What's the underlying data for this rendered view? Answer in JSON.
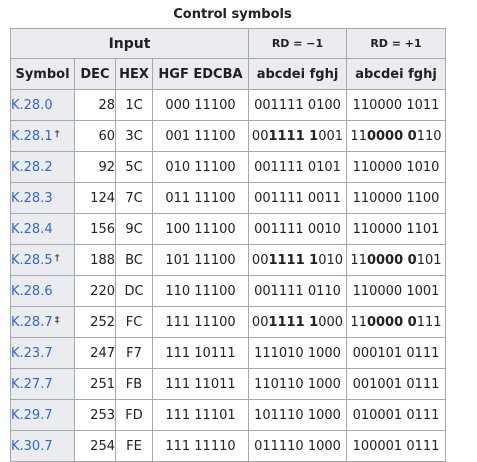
{
  "caption": "Control symbols",
  "header": {
    "input_label": "Input",
    "rd_neg_label": "RD = −1",
    "rd_pos_label": "RD = +1",
    "columns": [
      "Symbol",
      "DEC",
      "HEX",
      "HGF EDCBA",
      "abcdei fghj",
      "abcdei fghj"
    ]
  },
  "rows": [
    {
      "symbol": "K.28.0",
      "mark": "",
      "dec": "28",
      "hex": "1C",
      "hgf": "000 11100",
      "rd_neg": [
        {
          "t": "001111 0100",
          "b": false
        }
      ],
      "rd_pos": [
        {
          "t": "110000 1011",
          "b": false
        }
      ]
    },
    {
      "symbol": "K.28.1",
      "mark": "†",
      "dec": "60",
      "hex": "3C",
      "hgf": "001 11100",
      "rd_neg": [
        {
          "t": "00",
          "b": false
        },
        {
          "t": "1111 1",
          "b": true
        },
        {
          "t": "001",
          "b": false
        }
      ],
      "rd_pos": [
        {
          "t": "11",
          "b": false
        },
        {
          "t": "0000 0",
          "b": true
        },
        {
          "t": "110",
          "b": false
        }
      ]
    },
    {
      "symbol": "K.28.2",
      "mark": "",
      "dec": "92",
      "hex": "5C",
      "hgf": "010 11100",
      "rd_neg": [
        {
          "t": "001111 0101",
          "b": false
        }
      ],
      "rd_pos": [
        {
          "t": "110000 1010",
          "b": false
        }
      ]
    },
    {
      "symbol": "K.28.3",
      "mark": "",
      "dec": "124",
      "hex": "7C",
      "hgf": "011 11100",
      "rd_neg": [
        {
          "t": "001111 0011",
          "b": false
        }
      ],
      "rd_pos": [
        {
          "t": "110000 1100",
          "b": false
        }
      ]
    },
    {
      "symbol": "K.28.4",
      "mark": "",
      "dec": "156",
      "hex": "9C",
      "hgf": "100 11100",
      "rd_neg": [
        {
          "t": "001111 0010",
          "b": false
        }
      ],
      "rd_pos": [
        {
          "t": "110000 1101",
          "b": false
        }
      ]
    },
    {
      "symbol": "K.28.5",
      "mark": "†",
      "dec": "188",
      "hex": "BC",
      "hgf": "101 11100",
      "rd_neg": [
        {
          "t": "00",
          "b": false
        },
        {
          "t": "1111 1",
          "b": true
        },
        {
          "t": "010",
          "b": false
        }
      ],
      "rd_pos": [
        {
          "t": "11",
          "b": false
        },
        {
          "t": "0000 0",
          "b": true
        },
        {
          "t": "101",
          "b": false
        }
      ]
    },
    {
      "symbol": "K.28.6",
      "mark": "",
      "dec": "220",
      "hex": "DC",
      "hgf": "110 11100",
      "rd_neg": [
        {
          "t": "001111 0110",
          "b": false
        }
      ],
      "rd_pos": [
        {
          "t": "110000 1001",
          "b": false
        }
      ]
    },
    {
      "symbol": "K.28.7",
      "mark": "‡",
      "dec": "252",
      "hex": "FC",
      "hgf": "111 11100",
      "rd_neg": [
        {
          "t": "00",
          "b": false
        },
        {
          "t": "1111 1",
          "b": true
        },
        {
          "t": "000",
          "b": false
        }
      ],
      "rd_pos": [
        {
          "t": "11",
          "b": false
        },
        {
          "t": "0000 0",
          "b": true
        },
        {
          "t": "111",
          "b": false
        }
      ]
    },
    {
      "symbol": "K.23.7",
      "mark": "",
      "dec": "247",
      "hex": "F7",
      "hgf": "111 10111",
      "rd_neg": [
        {
          "t": "111010 1000",
          "b": false
        }
      ],
      "rd_pos": [
        {
          "t": "000101 0111",
          "b": false
        }
      ]
    },
    {
      "symbol": "K.27.7",
      "mark": "",
      "dec": "251",
      "hex": "FB",
      "hgf": "111 11011",
      "rd_neg": [
        {
          "t": "110110 1000",
          "b": false
        }
      ],
      "rd_pos": [
        {
          "t": "001001 0111",
          "b": false
        }
      ]
    },
    {
      "symbol": "K.29.7",
      "mark": "",
      "dec": "253",
      "hex": "FD",
      "hgf": "111 11101",
      "rd_neg": [
        {
          "t": "101110 1000",
          "b": false
        }
      ],
      "rd_pos": [
        {
          "t": "010001 0111",
          "b": false
        }
      ]
    },
    {
      "symbol": "K.30.7",
      "mark": "",
      "dec": "254",
      "hex": "FE",
      "hgf": "111 11110",
      "rd_neg": [
        {
          "t": "011110 1000",
          "b": false
        }
      ],
      "rd_pos": [
        {
          "t": "100001 0111",
          "b": false
        }
      ]
    }
  ],
  "colors": {
    "header_bg": "#eaecf0",
    "border": "#a2a9b1",
    "link": "#3366cc"
  }
}
